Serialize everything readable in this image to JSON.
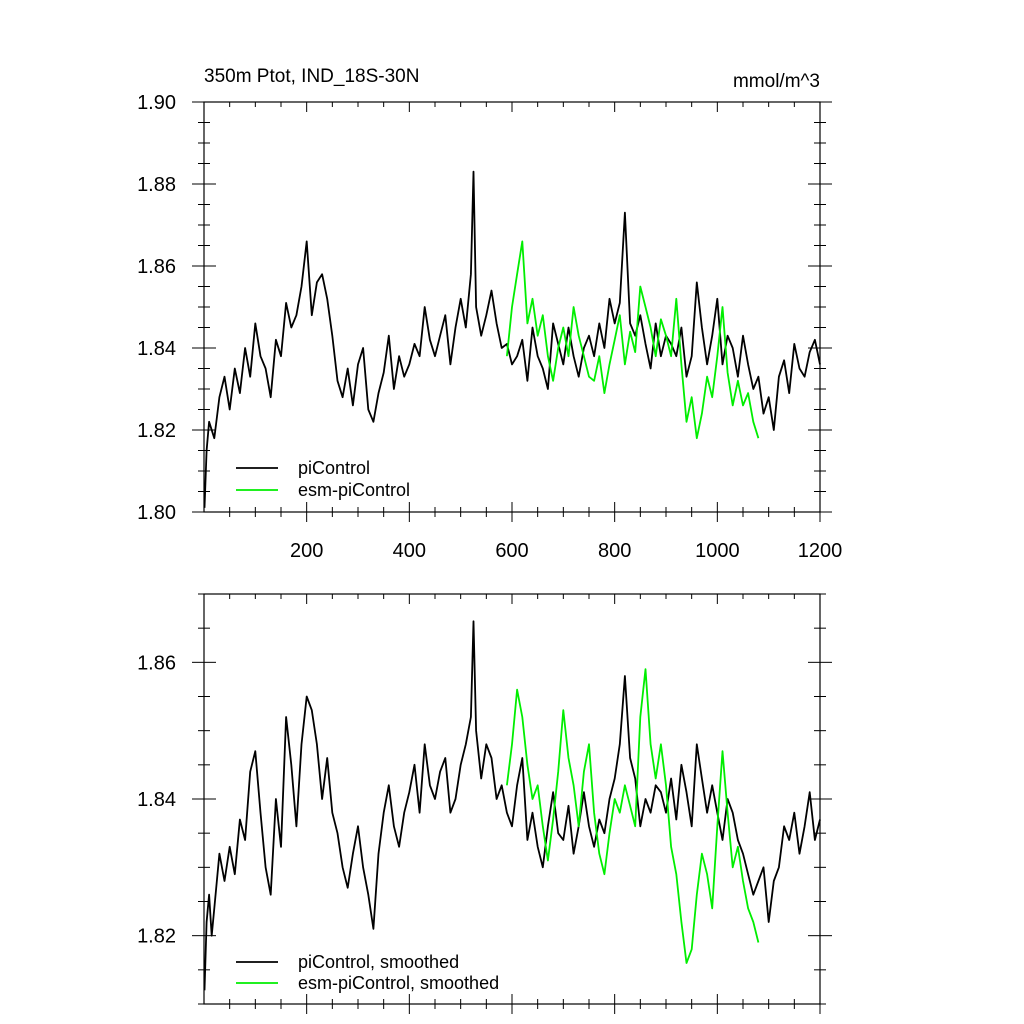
{
  "colors": {
    "picontrol": "#000000",
    "esm_picontrol": "#00ee00"
  },
  "chart_data": [
    {
      "type": "line",
      "title": "350m Ptot, IND_18S-30N",
      "units": "mmol/m^3",
      "xlabel": "",
      "ylabel": "",
      "xlim": [
        0,
        1200
      ],
      "ylim": [
        1.8,
        1.9
      ],
      "x_ticks": [
        200,
        400,
        600,
        800,
        1000,
        1200
      ],
      "x_tick_labels": [
        "200",
        "400",
        "600",
        "800",
        "1000",
        "1200"
      ],
      "y_ticks": [
        1.8,
        1.82,
        1.84,
        1.86,
        1.88,
        1.9
      ],
      "y_tick_labels": [
        "1.80",
        "1.82",
        "1.84",
        "1.86",
        "1.88",
        "1.90"
      ],
      "legend_position": "bottom-left",
      "series": [
        {
          "name": "piControl",
          "color": "#000000",
          "x": [
            1,
            5,
            10,
            20,
            30,
            40,
            50,
            60,
            70,
            80,
            90,
            100,
            110,
            120,
            130,
            140,
            150,
            160,
            170,
            180,
            190,
            200,
            210,
            220,
            230,
            240,
            250,
            260,
            270,
            280,
            290,
            300,
            310,
            320,
            330,
            340,
            350,
            360,
            370,
            380,
            390,
            400,
            410,
            420,
            430,
            440,
            450,
            460,
            470,
            480,
            490,
            500,
            510,
            520,
            525,
            530,
            540,
            550,
            560,
            570,
            580,
            590,
            600,
            610,
            620,
            630,
            640,
            650,
            660,
            670,
            680,
            690,
            700,
            710,
            720,
            730,
            740,
            750,
            760,
            770,
            780,
            790,
            800,
            810,
            820,
            830,
            840,
            850,
            860,
            870,
            880,
            890,
            900,
            910,
            920,
            930,
            940,
            950,
            960,
            970,
            980,
            990,
            1000,
            1010,
            1020,
            1030,
            1040,
            1050,
            1060,
            1070,
            1080,
            1090,
            1100,
            1110,
            1120,
            1130,
            1140,
            1150,
            1160,
            1170,
            1180,
            1190,
            1200
          ],
          "values": [
            1.801,
            1.815,
            1.822,
            1.818,
            1.828,
            1.833,
            1.825,
            1.835,
            1.829,
            1.84,
            1.833,
            1.846,
            1.838,
            1.835,
            1.828,
            1.842,
            1.838,
            1.851,
            1.845,
            1.848,
            1.855,
            1.866,
            1.848,
            1.856,
            1.858,
            1.852,
            1.843,
            1.832,
            1.828,
            1.835,
            1.826,
            1.836,
            1.84,
            1.825,
            1.822,
            1.829,
            1.834,
            1.843,
            1.83,
            1.838,
            1.833,
            1.836,
            1.841,
            1.838,
            1.85,
            1.842,
            1.838,
            1.843,
            1.848,
            1.836,
            1.845,
            1.852,
            1.845,
            1.858,
            1.883,
            1.85,
            1.843,
            1.848,
            1.854,
            1.846,
            1.84,
            1.841,
            1.836,
            1.838,
            1.842,
            1.832,
            1.845,
            1.838,
            1.835,
            1.83,
            1.846,
            1.841,
            1.836,
            1.845,
            1.838,
            1.833,
            1.84,
            1.843,
            1.838,
            1.846,
            1.84,
            1.852,
            1.846,
            1.851,
            1.873,
            1.846,
            1.843,
            1.848,
            1.841,
            1.835,
            1.846,
            1.838,
            1.843,
            1.841,
            1.838,
            1.845,
            1.833,
            1.838,
            1.856,
            1.845,
            1.836,
            1.843,
            1.852,
            1.836,
            1.843,
            1.84,
            1.833,
            1.843,
            1.836,
            1.83,
            1.833,
            1.824,
            1.828,
            1.82,
            1.833,
            1.837,
            1.829,
            1.841,
            1.835,
            1.833,
            1.839,
            1.842,
            1.836
          ]
        },
        {
          "name": "esm-piControl",
          "color": "#00ee00",
          "x": [
            590,
            600,
            610,
            620,
            630,
            640,
            650,
            660,
            670,
            680,
            690,
            700,
            710,
            720,
            730,
            740,
            750,
            760,
            770,
            780,
            790,
            800,
            810,
            820,
            830,
            840,
            850,
            860,
            870,
            880,
            890,
            900,
            910,
            920,
            930,
            940,
            950,
            960,
            970,
            980,
            990,
            1000,
            1010,
            1020,
            1030,
            1040,
            1050,
            1060,
            1070,
            1080
          ],
          "values": [
            1.838,
            1.85,
            1.858,
            1.866,
            1.846,
            1.852,
            1.843,
            1.848,
            1.838,
            1.832,
            1.84,
            1.845,
            1.838,
            1.85,
            1.843,
            1.838,
            1.833,
            1.832,
            1.838,
            1.829,
            1.836,
            1.842,
            1.848,
            1.836,
            1.844,
            1.839,
            1.855,
            1.85,
            1.845,
            1.838,
            1.847,
            1.843,
            1.838,
            1.852,
            1.836,
            1.822,
            1.828,
            1.818,
            1.824,
            1.833,
            1.828,
            1.838,
            1.85,
            1.834,
            1.826,
            1.832,
            1.826,
            1.829,
            1.822,
            1.818
          ]
        }
      ]
    },
    {
      "type": "line",
      "title": "",
      "xlabel": "",
      "ylabel": "",
      "xlim": [
        0,
        1200
      ],
      "ylim": [
        1.81,
        1.87
      ],
      "y_ticks": [
        1.82,
        1.84,
        1.86
      ],
      "y_tick_labels": [
        "1.82",
        "1.84",
        "1.86"
      ],
      "legend_position": "bottom-left",
      "series": [
        {
          "name": "piControl, smoothed",
          "color": "#000000",
          "x": [
            1,
            5,
            10,
            15,
            20,
            30,
            40,
            50,
            60,
            70,
            80,
            90,
            100,
            110,
            120,
            130,
            140,
            150,
            160,
            170,
            180,
            190,
            200,
            210,
            220,
            230,
            240,
            250,
            260,
            270,
            280,
            290,
            300,
            310,
            320,
            330,
            340,
            350,
            360,
            370,
            380,
            390,
            400,
            410,
            420,
            430,
            440,
            450,
            460,
            470,
            480,
            490,
            500,
            510,
            520,
            525,
            530,
            540,
            550,
            560,
            570,
            580,
            590,
            600,
            610,
            620,
            630,
            640,
            650,
            660,
            670,
            680,
            690,
            700,
            710,
            720,
            730,
            740,
            750,
            760,
            770,
            780,
            790,
            800,
            810,
            820,
            830,
            840,
            850,
            860,
            870,
            880,
            890,
            900,
            910,
            920,
            930,
            940,
            950,
            960,
            970,
            980,
            990,
            1000,
            1010,
            1020,
            1030,
            1040,
            1050,
            1060,
            1070,
            1080,
            1090,
            1100,
            1110,
            1120,
            1130,
            1140,
            1150,
            1160,
            1170,
            1180,
            1190,
            1200
          ],
          "values": [
            1.812,
            1.822,
            1.826,
            1.82,
            1.824,
            1.832,
            1.828,
            1.833,
            1.829,
            1.837,
            1.834,
            1.844,
            1.847,
            1.838,
            1.83,
            1.826,
            1.84,
            1.833,
            1.852,
            1.845,
            1.836,
            1.848,
            1.855,
            1.853,
            1.848,
            1.84,
            1.846,
            1.838,
            1.835,
            1.83,
            1.827,
            1.832,
            1.836,
            1.83,
            1.826,
            1.821,
            1.832,
            1.838,
            1.842,
            1.836,
            1.833,
            1.838,
            1.841,
            1.845,
            1.838,
            1.848,
            1.842,
            1.84,
            1.844,
            1.846,
            1.838,
            1.84,
            1.845,
            1.848,
            1.852,
            1.866,
            1.85,
            1.843,
            1.848,
            1.846,
            1.84,
            1.842,
            1.838,
            1.836,
            1.842,
            1.846,
            1.834,
            1.838,
            1.833,
            1.83,
            1.836,
            1.841,
            1.835,
            1.834,
            1.839,
            1.832,
            1.836,
            1.841,
            1.836,
            1.833,
            1.837,
            1.835,
            1.84,
            1.843,
            1.848,
            1.858,
            1.846,
            1.843,
            1.836,
            1.84,
            1.838,
            1.842,
            1.841,
            1.838,
            1.843,
            1.837,
            1.845,
            1.841,
            1.836,
            1.848,
            1.843,
            1.838,
            1.842,
            1.838,
            1.834,
            1.84,
            1.838,
            1.834,
            1.832,
            1.829,
            1.826,
            1.828,
            1.83,
            1.822,
            1.828,
            1.83,
            1.836,
            1.834,
            1.838,
            1.832,
            1.836,
            1.841,
            1.834,
            1.837
          ]
        },
        {
          "name": "esm-piControl, smoothed",
          "color": "#00ee00",
          "x": [
            590,
            600,
            610,
            620,
            630,
            640,
            650,
            660,
            670,
            680,
            690,
            700,
            710,
            720,
            730,
            740,
            750,
            760,
            770,
            780,
            790,
            800,
            810,
            820,
            830,
            840,
            850,
            860,
            870,
            880,
            890,
            900,
            910,
            920,
            930,
            940,
            950,
            960,
            970,
            980,
            990,
            1000,
            1010,
            1020,
            1030,
            1040,
            1050,
            1060,
            1070,
            1080
          ],
          "values": [
            1.842,
            1.848,
            1.856,
            1.852,
            1.845,
            1.84,
            1.842,
            1.836,
            1.831,
            1.837,
            1.844,
            1.853,
            1.846,
            1.842,
            1.836,
            1.844,
            1.848,
            1.838,
            1.832,
            1.829,
            1.835,
            1.84,
            1.838,
            1.842,
            1.839,
            1.836,
            1.852,
            1.859,
            1.848,
            1.843,
            1.848,
            1.842,
            1.833,
            1.829,
            1.822,
            1.816,
            1.818,
            1.826,
            1.832,
            1.829,
            1.824,
            1.836,
            1.847,
            1.838,
            1.83,
            1.833,
            1.828,
            1.824,
            1.822,
            1.819
          ]
        }
      ]
    }
  ]
}
